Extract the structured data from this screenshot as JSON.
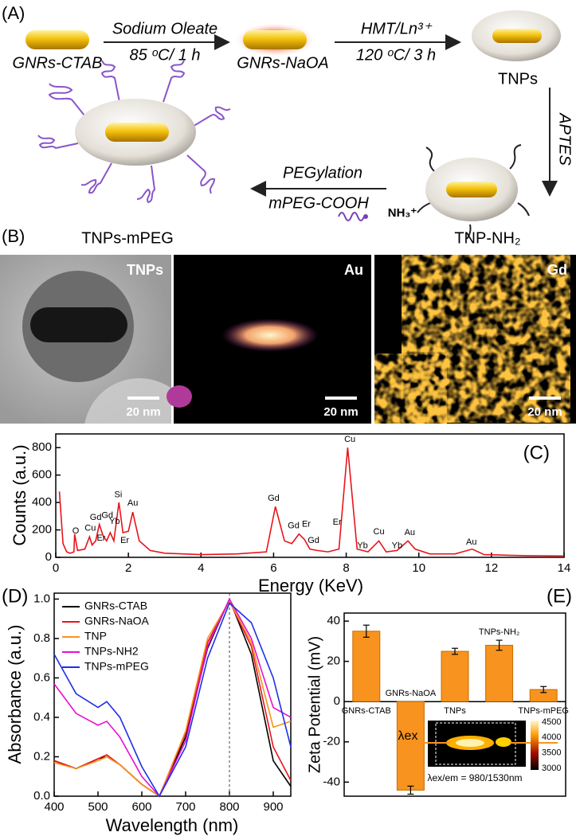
{
  "schematic": {
    "label": "(A)",
    "gnrs_ctab": "GNRs-CTAB",
    "step1_top": "Sodium Oleate",
    "step1_bottom": "85 ᵒC/ 1 h",
    "gnrs_naoa": "GNRs-NaOA",
    "step2_top": "HMT/Ln³⁺",
    "step2_bottom": "120 ᵒC/ 3 h",
    "tnps": "TNPs",
    "step3": "APTES",
    "tnp_nh2": "TNP-NH₂",
    "nh3": "NH₃⁺",
    "step4_top": "PEGylation",
    "step4_bottom": "mPEG-COOH",
    "tnps_mpeg": "TNPs-mPEG"
  },
  "images": {
    "label": "(B)",
    "panels": [
      {
        "title": "TNPs",
        "scale": "20 nm"
      },
      {
        "title": "Au",
        "scale": "20 nm"
      },
      {
        "title": "Gd",
        "scale": "20 nm"
      }
    ]
  },
  "chart_data": [
    {
      "type": "line",
      "label": "(C)",
      "x_label": "Energy (KeV)",
      "y_label": "Counts (a.u.)",
      "color": "#e8141b",
      "x": [
        0.1,
        0.2,
        0.3,
        0.4,
        0.5,
        0.52,
        0.6,
        0.8,
        0.93,
        1.0,
        1.1,
        1.2,
        1.3,
        1.4,
        1.5,
        1.6,
        1.74,
        1.85,
        2.0,
        2.12,
        2.3,
        2.6,
        3,
        4,
        5,
        5.8,
        6.05,
        6.3,
        6.5,
        6.7,
        6.85,
        7.0,
        7.2,
        7.5,
        7.8,
        8.04,
        8.3,
        8.6,
        8.9,
        9.1,
        9.4,
        9.7,
        9.9,
        10.3,
        11,
        11.47,
        11.8,
        12.5,
        13,
        14
      ],
      "values": [
        480,
        100,
        40,
        30,
        40,
        170,
        50,
        60,
        150,
        90,
        120,
        240,
        160,
        120,
        180,
        120,
        400,
        180,
        190,
        330,
        120,
        50,
        30,
        20,
        25,
        40,
        370,
        120,
        100,
        170,
        130,
        60,
        50,
        40,
        60,
        800,
        60,
        40,
        120,
        40,
        50,
        120,
        60,
        25,
        25,
        60,
        20,
        15,
        12,
        10
      ],
      "annotations": [
        "O",
        "Cu",
        "Gd",
        "Gd",
        "Yb",
        "Er",
        "Si",
        "Er",
        "Au",
        "Gd",
        "Gd",
        "Er",
        "Gd",
        "Er",
        "Cu",
        "Yb",
        "Cu",
        "Yb",
        "Au",
        "Au"
      ],
      "xlim": [
        0,
        14
      ],
      "xticks": [
        0,
        2,
        4,
        6,
        8,
        10,
        12,
        14
      ],
      "ylim": [
        0,
        900
      ],
      "yticks": [
        0,
        200,
        400,
        600,
        800
      ]
    },
    {
      "type": "line",
      "label": "(D)",
      "x_label": "Wavelength (nm)",
      "y_label": "Absorbance (a.u.)",
      "legend": "upper left",
      "reference_line": 800,
      "x": [
        400,
        450,
        500,
        520,
        550,
        600,
        640,
        700,
        750,
        800,
        850,
        900,
        940
      ],
      "series": [
        {
          "name": "GNRs-CTAB",
          "color": "#000000",
          "values": [
            0.18,
            0.14,
            0.19,
            0.2,
            0.16,
            0.06,
            0.0,
            0.3,
            0.75,
            1.0,
            0.72,
            0.18,
            0.05
          ]
        },
        {
          "name": "GNRs-NaOA",
          "color": "#e8141b",
          "values": [
            0.18,
            0.14,
            0.19,
            0.21,
            0.16,
            0.06,
            0.0,
            0.32,
            0.78,
            0.99,
            0.76,
            0.25,
            0.08
          ]
        },
        {
          "name": "TNP",
          "color": "#f7931e",
          "values": [
            0.17,
            0.14,
            0.18,
            0.2,
            0.16,
            0.06,
            0.0,
            0.33,
            0.8,
            0.99,
            0.78,
            0.35,
            0.38
          ]
        },
        {
          "name": "TNPs-NH2",
          "color": "#e60fd2",
          "values": [
            0.57,
            0.42,
            0.36,
            0.38,
            0.3,
            0.1,
            0.0,
            0.28,
            0.76,
            1.0,
            0.8,
            0.45,
            0.4
          ]
        },
        {
          "name": "TNPs-mPEG",
          "color": "#1f2fe6",
          "values": [
            0.72,
            0.52,
            0.45,
            0.48,
            0.4,
            0.15,
            0.0,
            0.25,
            0.7,
            0.98,
            0.88,
            0.6,
            0.25
          ]
        }
      ],
      "xlim": [
        400,
        940
      ],
      "xticks": [
        400,
        500,
        600,
        700,
        800,
        900
      ],
      "ylim": [
        0,
        1.03
      ],
      "yticks": [
        {
          "value": 0,
          "label": "0.0"
        },
        0.2,
        0.4,
        0.6,
        0.8,
        {
          "value": 1,
          "label": "1.0"
        }
      ]
    },
    {
      "type": "bar",
      "label": "(E)",
      "y_label": "Zeta Potential (mV)",
      "color": "#f7931e",
      "categories": [
        "GNRs-CTAB",
        "GNRs-NaOA",
        "TNPs",
        "TNPs-NH₂",
        "TNPs-mPEG"
      ],
      "values": [
        35,
        -44,
        25,
        28,
        6
      ],
      "errors": [
        3,
        2,
        1.5,
        2.5,
        1.5
      ],
      "ylim": [
        -47,
        44
      ],
      "yticks": [
        -40,
        -20,
        0,
        20,
        40
      ],
      "inset": {
        "label": "λex",
        "caption": "λex/em = 980/1530nm",
        "colorbar_ticks": [
          3000,
          3500,
          4000,
          4500
        ]
      }
    }
  ]
}
